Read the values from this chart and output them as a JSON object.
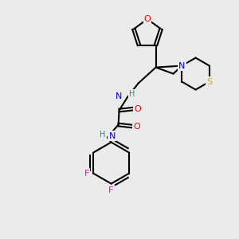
{
  "background_color": "#ebebeb",
  "bond_color": "#000000",
  "atom_colors": {
    "O": "#ff0000",
    "N": "#0000ff",
    "S": "#ccaa00",
    "F": "#ff00aa",
    "H": "#408080",
    "C": "#000000"
  },
  "font_size": 7.5
}
